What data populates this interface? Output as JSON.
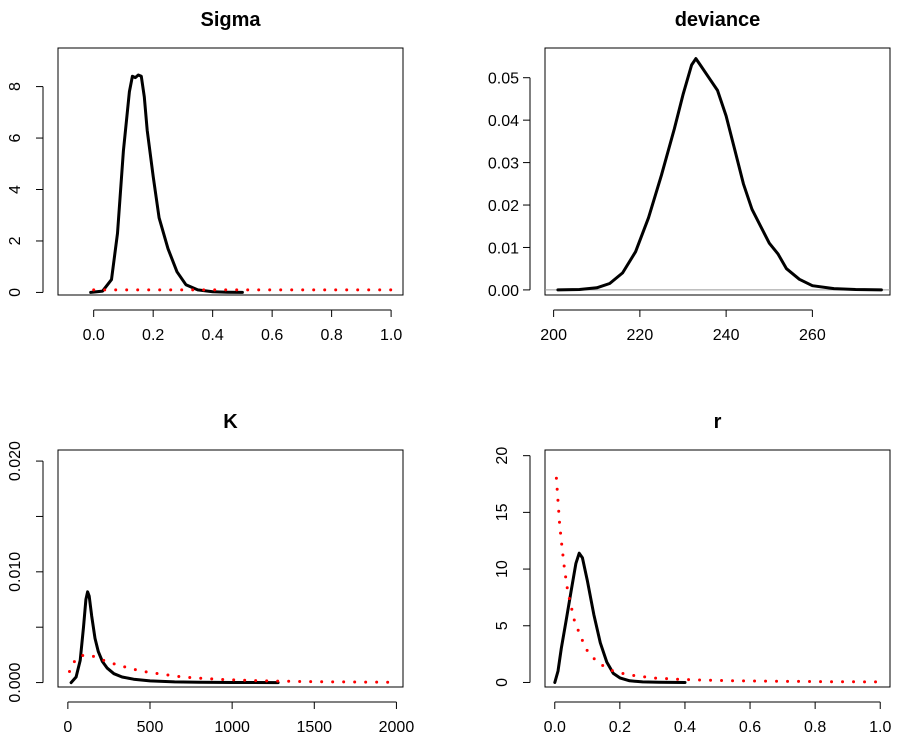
{
  "chart_data": [
    {
      "type": "line",
      "title": "Sigma",
      "xlim": [
        -0.12,
        1.04
      ],
      "ylim": [
        -0.1,
        9.5
      ],
      "x_ticks": [
        0.0,
        0.2,
        0.4,
        0.6,
        0.8,
        1.0
      ],
      "x_tick_labels": [
        "0.0",
        "0.2",
        "0.4",
        "0.6",
        "0.8",
        "1.0"
      ],
      "y_ticks": [
        0,
        2,
        4,
        6,
        8
      ],
      "y_tick_labels": [
        "0",
        "2",
        "4",
        "6",
        "8"
      ],
      "y_labels_rotated": true,
      "baseline": false,
      "series": [
        {
          "style": "solid",
          "color": "#000000",
          "x": [
            -0.01,
            0.03,
            0.06,
            0.08,
            0.1,
            0.12,
            0.13,
            0.14,
            0.15,
            0.16,
            0.17,
            0.18,
            0.2,
            0.22,
            0.25,
            0.28,
            0.31,
            0.35,
            0.4,
            0.45,
            0.5
          ],
          "y": [
            0.0,
            0.05,
            0.5,
            2.3,
            5.5,
            7.8,
            8.4,
            8.35,
            8.45,
            8.4,
            7.6,
            6.3,
            4.5,
            2.9,
            1.7,
            0.8,
            0.3,
            0.1,
            0.03,
            0.01,
            0.0
          ]
        },
        {
          "style": "dotted",
          "color": "#ff0000",
          "x": [
            0.0,
            0.1,
            0.2,
            0.3,
            0.4,
            0.5,
            0.6,
            0.7,
            0.8,
            0.9,
            1.0
          ],
          "y": [
            0.1,
            0.1,
            0.1,
            0.1,
            0.1,
            0.1,
            0.1,
            0.1,
            0.1,
            0.1,
            0.1
          ]
        }
      ]
    },
    {
      "type": "line",
      "title": "deviance",
      "xlim": [
        198,
        278
      ],
      "ylim": [
        -0.0012,
        0.057
      ],
      "x_ticks": [
        200,
        220,
        240,
        260
      ],
      "x_tick_labels": [
        "200",
        "220",
        "240",
        "260"
      ],
      "y_ticks": [
        0.0,
        0.01,
        0.02,
        0.03,
        0.04,
        0.05
      ],
      "y_tick_labels": [
        "0.00",
        "0.01",
        "0.02",
        "0.03",
        "0.04",
        "0.05"
      ],
      "y_labels_rotated": false,
      "baseline": true,
      "series": [
        {
          "style": "solid",
          "color": "#000000",
          "x": [
            201,
            206,
            210,
            213,
            216,
            219,
            222,
            225,
            228,
            230,
            232,
            233,
            234,
            236,
            238,
            240,
            242,
            244,
            246,
            248,
            250,
            252,
            254,
            257,
            260,
            265,
            270,
            276
          ],
          "y": [
            0.0,
            0.0001,
            0.0005,
            0.0015,
            0.004,
            0.009,
            0.017,
            0.027,
            0.038,
            0.046,
            0.053,
            0.0545,
            0.053,
            0.05,
            0.047,
            0.041,
            0.033,
            0.025,
            0.019,
            0.015,
            0.011,
            0.0085,
            0.005,
            0.0025,
            0.001,
            0.0003,
            0.0001,
            0.0
          ]
        }
      ]
    },
    {
      "type": "line",
      "title": "K",
      "xlim": [
        -60,
        2040
      ],
      "ylim": [
        -0.0004,
        0.021
      ],
      "x_ticks": [
        0,
        500,
        1000,
        1500,
        2000
      ],
      "x_tick_labels": [
        "0",
        "500",
        "1000",
        "1500",
        "2000"
      ],
      "y_ticks": [
        0.0,
        0.005,
        0.01,
        0.015,
        0.02
      ],
      "y_tick_labels": [
        "0.000",
        "",
        "0.010",
        "",
        "0.020"
      ],
      "y_labels_rotated": true,
      "baseline": false,
      "series": [
        {
          "style": "solid",
          "color": "#000000",
          "x": [
            20,
            50,
            75,
            95,
            110,
            120,
            130,
            145,
            165,
            185,
            210,
            240,
            280,
            330,
            400,
            500,
            650,
            800,
            1000,
            1280
          ],
          "y": [
            0.0,
            0.0005,
            0.002,
            0.005,
            0.0075,
            0.0082,
            0.0078,
            0.006,
            0.004,
            0.0028,
            0.0019,
            0.0013,
            0.0008,
            0.0005,
            0.0003,
            0.00015,
            6e-05,
            3e-05,
            1e-05,
            0.0
          ]
        },
        {
          "style": "dotted",
          "color": "#ff0000",
          "x": [
            10,
            50,
            100,
            150,
            200,
            300,
            400,
            500,
            700,
            900,
            1200,
            1500,
            2000
          ],
          "y": [
            0.001,
            0.0022,
            0.0025,
            0.0024,
            0.0021,
            0.0016,
            0.0012,
            0.0009,
            0.0005,
            0.0003,
            0.00015,
            8e-05,
            2e-05
          ]
        }
      ]
    },
    {
      "type": "line",
      "title": "r",
      "xlim": [
        -0.03,
        1.03
      ],
      "ylim": [
        -0.4,
        20.5
      ],
      "x_ticks": [
        0.0,
        0.2,
        0.4,
        0.6,
        0.8,
        1.0
      ],
      "x_tick_labels": [
        "0.0",
        "0.2",
        "0.4",
        "0.6",
        "0.8",
        "1.0"
      ],
      "y_ticks": [
        0,
        5,
        10,
        15,
        20
      ],
      "y_tick_labels": [
        "0",
        "5",
        "10",
        "15",
        "20"
      ],
      "y_labels_rotated": true,
      "baseline": false,
      "series": [
        {
          "style": "solid",
          "color": "#000000",
          "x": [
            0.0,
            0.01,
            0.02,
            0.035,
            0.05,
            0.065,
            0.075,
            0.085,
            0.1,
            0.12,
            0.14,
            0.16,
            0.18,
            0.2,
            0.23,
            0.27,
            0.32,
            0.4
          ],
          "y": [
            0.0,
            1.0,
            3.0,
            5.5,
            8.0,
            10.5,
            11.4,
            11.0,
            9.0,
            6.0,
            3.5,
            1.8,
            0.8,
            0.4,
            0.15,
            0.05,
            0.02,
            0.0
          ]
        },
        {
          "style": "dotted",
          "color": "#ff0000",
          "x": [
            0.005,
            0.01,
            0.015,
            0.02,
            0.03,
            0.04,
            0.06,
            0.08,
            0.1,
            0.13,
            0.17,
            0.22,
            0.3,
            0.4,
            0.55,
            0.7,
            0.85,
            1.0
          ],
          "y": [
            18.0,
            16.0,
            14.0,
            12.5,
            10.0,
            8.0,
            5.5,
            4.0,
            2.8,
            1.8,
            1.1,
            0.7,
            0.4,
            0.25,
            0.15,
            0.1,
            0.07,
            0.05
          ]
        }
      ]
    }
  ]
}
